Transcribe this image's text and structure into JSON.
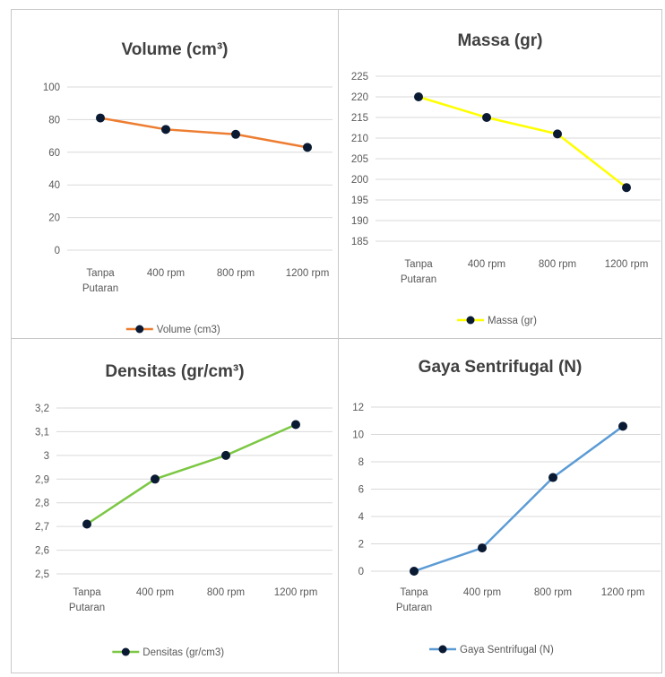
{
  "chart_data": [
    {
      "type": "line",
      "title": "Volume (cm³)",
      "categories": [
        [
          "Tanpa",
          "Putaran"
        ],
        [
          "400 rpm"
        ],
        [
          "800 rpm"
        ],
        [
          "1200 rpm"
        ]
      ],
      "series": [
        {
          "name": "Volume (cm3)",
          "values": [
            81,
            74,
            71,
            63
          ],
          "color": "#ed7d31"
        }
      ],
      "yticks": [
        "0",
        "20",
        "40",
        "60",
        "80",
        "100"
      ],
      "ylim": [
        0,
        100
      ],
      "legend": "bottom",
      "grid": true
    },
    {
      "type": "line",
      "title": "Massa (gr)",
      "categories": [
        [
          "Tanpa",
          "Putaran"
        ],
        [
          "400 rpm"
        ],
        [
          "800 rpm"
        ],
        [
          "1200 rpm"
        ]
      ],
      "series": [
        {
          "name": "Massa (gr)",
          "values": [
            220,
            215,
            211,
            198
          ],
          "color": "#ffff00"
        }
      ],
      "yticks": [
        "185",
        "190",
        "195",
        "200",
        "205",
        "210",
        "215",
        "220",
        "225"
      ],
      "ylim": [
        185,
        225
      ],
      "legend": "bottom",
      "grid": true
    },
    {
      "type": "line",
      "title": "Densitas (gr/cm³)",
      "categories": [
        [
          "Tanpa",
          "Putaran"
        ],
        [
          "400 rpm"
        ],
        [
          "800 rpm"
        ],
        [
          "1200 rpm"
        ]
      ],
      "series": [
        {
          "name": "Densitas (gr/cm3)",
          "values": [
            2.71,
            2.9,
            3.0,
            3.13
          ],
          "color": "#7cc744"
        }
      ],
      "yticks": [
        "2,5",
        "2,6",
        "2,7",
        "2,8",
        "2,9",
        "3",
        "3,1",
        "3,2"
      ],
      "ylim": [
        2.5,
        3.2
      ],
      "legend": "bottom",
      "grid": true
    },
    {
      "type": "line",
      "title": "Gaya Sentrifugal (N)",
      "categories": [
        [
          "Tanpa",
          "Putaran"
        ],
        [
          "400 rpm"
        ],
        [
          "800 rpm"
        ],
        [
          "1200 rpm"
        ]
      ],
      "series": [
        {
          "name": "Gaya Sentrifugal (N)",
          "values": [
            0,
            1.7,
            6.85,
            10.6
          ],
          "color": "#5b9bd5"
        }
      ],
      "yticks": [
        "0",
        "2",
        "4",
        "6",
        "8",
        "10",
        "12"
      ],
      "ylim": [
        0,
        12
      ],
      "legend": "bottom",
      "grid": true
    }
  ]
}
